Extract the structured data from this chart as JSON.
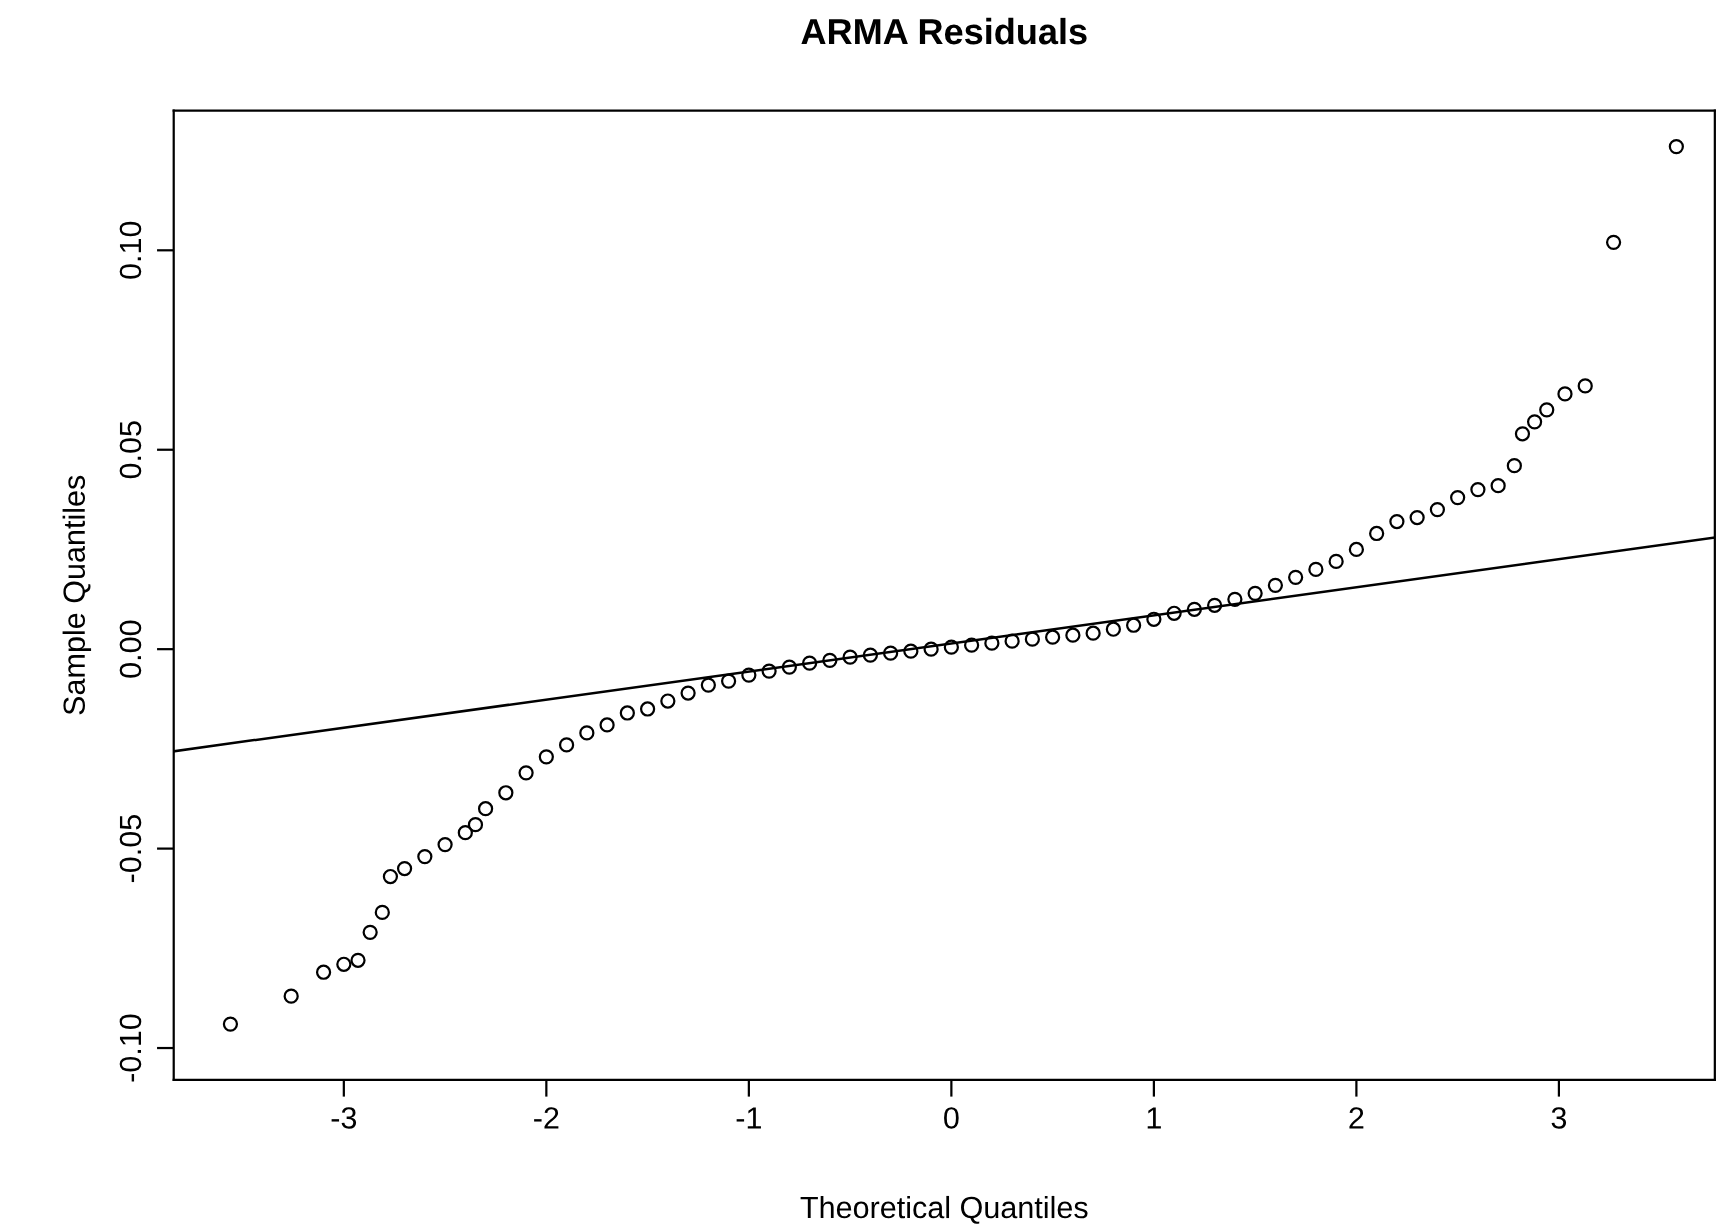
{
  "chart_data": {
    "type": "scatter",
    "title": "ARMA Residuals",
    "xlabel": "Theoretical Quantiles",
    "ylabel": "Sample Quantiles",
    "xlim": [
      -3.84,
      3.77
    ],
    "ylim": [
      -0.108,
      0.135
    ],
    "xticks": [
      -3,
      -2,
      -1,
      0,
      1,
      2,
      3
    ],
    "yticks": [
      {
        "value": -0.1,
        "label": "-0.10"
      },
      {
        "value": -0.05,
        "label": "-0.05"
      },
      {
        "value": 0,
        "label": "0.00"
      },
      {
        "value": 0.05,
        "label": "0.05"
      },
      {
        "value": 0.1,
        "label": "0.10"
      }
    ],
    "grid": false,
    "legend": false,
    "marker": "circle",
    "series": [
      {
        "color": "#000000",
        "x": [
          -3.56,
          -3.26,
          -3.1,
          -3.0,
          -2.93,
          -2.87,
          -2.81,
          -2.77,
          -2.7,
          -2.6,
          -2.5,
          -2.4,
          -2.35,
          -2.3,
          -2.2,
          -2.1,
          -2.0,
          -1.9,
          -1.8,
          -1.7,
          -1.6,
          -1.5,
          -1.4,
          -1.3,
          -1.2,
          -1.1,
          -1.0,
          -0.9,
          -0.8,
          -0.7,
          -0.6,
          -0.5,
          -0.4,
          -0.3,
          -0.2,
          -0.1,
          0,
          0.1,
          0.2,
          0.3,
          0.4,
          0.5,
          0.6,
          0.7,
          0.8,
          0.9,
          1.0,
          1.1,
          1.2,
          1.3,
          1.4,
          1.5,
          1.6,
          1.7,
          1.8,
          1.9,
          2.0,
          2.1,
          2.2,
          2.3,
          2.4,
          2.5,
          2.6,
          2.7,
          2.78,
          2.82,
          2.88,
          2.94,
          3.03,
          3.13,
          3.27,
          3.58
        ],
        "values": [
          -0.094,
          -0.087,
          -0.081,
          -0.079,
          -0.078,
          -0.071,
          -0.066,
          -0.057,
          -0.055,
          -0.052,
          -0.049,
          -0.046,
          -0.044,
          -0.04,
          -0.036,
          -0.031,
          -0.027,
          -0.024,
          -0.021,
          -0.019,
          -0.016,
          -0.015,
          -0.013,
          -0.011,
          -0.009,
          -0.008,
          -0.0065,
          -0.0055,
          -0.0045,
          -0.0035,
          -0.0028,
          -0.002,
          -0.0015,
          -0.001,
          -0.0005,
          0,
          0.0005,
          0.001,
          0.0015,
          0.002,
          0.0025,
          0.003,
          0.0035,
          0.004,
          0.005,
          0.006,
          0.0075,
          0.009,
          0.01,
          0.011,
          0.0125,
          0.014,
          0.016,
          0.018,
          0.02,
          0.022,
          0.025,
          0.029,
          0.032,
          0.033,
          0.035,
          0.038,
          0.04,
          0.041,
          0.046,
          0.054,
          0.057,
          0.06,
          0.064,
          0.066,
          0.102,
          0.126
        ]
      },
      {
        "type": "line",
        "marker": "none",
        "color": "#000000",
        "x": [
          -3.84,
          3.77
        ],
        "values": [
          -0.0256,
          0.028
        ]
      }
    ]
  }
}
